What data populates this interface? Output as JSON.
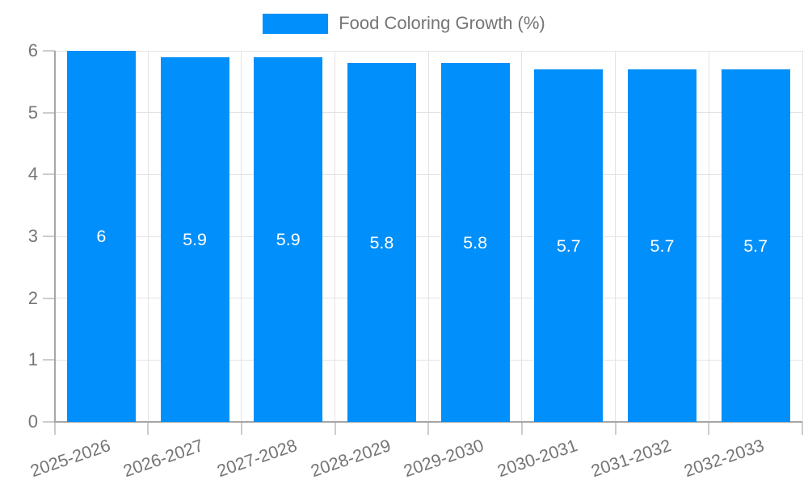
{
  "chart_data": {
    "type": "bar",
    "title": "Food Coloring Growth (%)",
    "legend": {
      "position": "top",
      "entries": [
        "Food Coloring Growth (%)"
      ]
    },
    "categories": [
      "2025-2026",
      "2026-2027",
      "2027-2028",
      "2028-2029",
      "2029-2030",
      "2030-2031",
      "2031-2032",
      "2032-2033"
    ],
    "values": [
      6,
      5.9,
      5.9,
      5.8,
      5.8,
      5.7,
      5.7,
      5.7
    ],
    "value_labels": [
      "6",
      "5.9",
      "5.9",
      "5.8",
      "5.8",
      "5.7",
      "5.7",
      "5.7"
    ],
    "xlabel": "",
    "ylabel": "",
    "ylim": [
      0,
      6
    ],
    "yticks": [
      0,
      1,
      2,
      3,
      4,
      5,
      6
    ],
    "grid": true,
    "x_tick_rotation_deg": -19,
    "colors": {
      "bar": "#008FFB",
      "bar_value_label": "#FFFFFF",
      "axis_text": "#757575",
      "axis_line": "#A6A6A6",
      "gridline": "#E3E3E3",
      "tick": "#CCCCCC",
      "background": "#FFFFFF"
    }
  }
}
